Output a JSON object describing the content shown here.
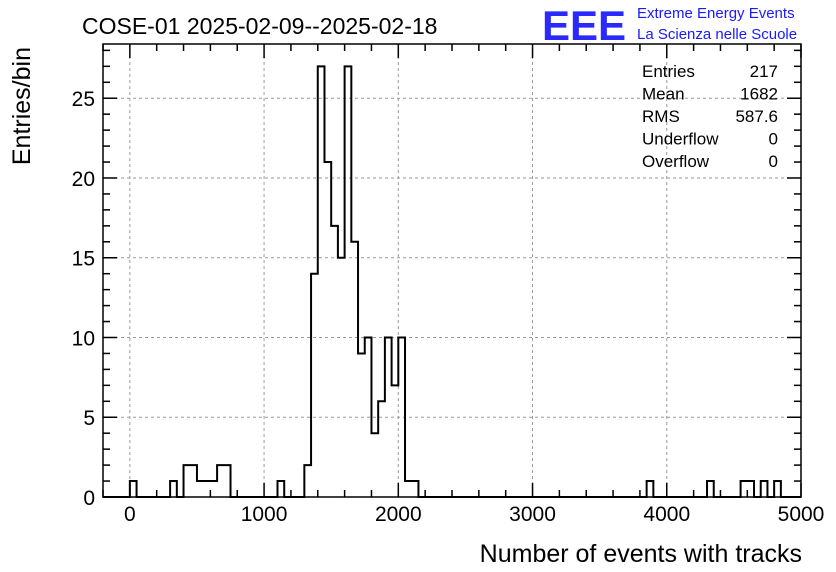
{
  "title": "COSE-01 2025-02-09--2025-02-18",
  "logo": {
    "letters": "EEE",
    "line1": "Extreme Energy Events",
    "line2": "La Scienza nelle Scuole",
    "color": "#1a1aff"
  },
  "stats": [
    {
      "label": "Entries",
      "value": "217"
    },
    {
      "label": "Mean",
      "value": "1682"
    },
    {
      "label": "RMS",
      "value": "587.6"
    },
    {
      "label": "Underflow",
      "value": "0"
    },
    {
      "label": "Overflow",
      "value": "0"
    }
  ],
  "chart_data": {
    "type": "histogram",
    "title": "COSE-01 2025-02-09--2025-02-18",
    "xlabel": "Number of events with tracks",
    "ylabel": "Entries/bin",
    "xlim": [
      -200,
      5000
    ],
    "ylim": [
      0,
      28.4
    ],
    "xticks": [
      0,
      1000,
      2000,
      3000,
      4000,
      5000
    ],
    "yticks": [
      0,
      5,
      10,
      15,
      20,
      25
    ],
    "bin_width": 50,
    "grid": true,
    "legend": "top-right stats box",
    "bins": [
      {
        "x": 0,
        "count": 1
      },
      {
        "x": 300,
        "count": 1
      },
      {
        "x": 400,
        "count": 2
      },
      {
        "x": 450,
        "count": 2
      },
      {
        "x": 500,
        "count": 1
      },
      {
        "x": 550,
        "count": 1
      },
      {
        "x": 600,
        "count": 1
      },
      {
        "x": 650,
        "count": 2
      },
      {
        "x": 700,
        "count": 2
      },
      {
        "x": 1100,
        "count": 1
      },
      {
        "x": 1300,
        "count": 2
      },
      {
        "x": 1350,
        "count": 14
      },
      {
        "x": 1400,
        "count": 27
      },
      {
        "x": 1450,
        "count": 21
      },
      {
        "x": 1500,
        "count": 17
      },
      {
        "x": 1550,
        "count": 15
      },
      {
        "x": 1600,
        "count": 27
      },
      {
        "x": 1650,
        "count": 16
      },
      {
        "x": 1700,
        "count": 9
      },
      {
        "x": 1750,
        "count": 10
      },
      {
        "x": 1800,
        "count": 4
      },
      {
        "x": 1850,
        "count": 6
      },
      {
        "x": 1900,
        "count": 10
      },
      {
        "x": 1950,
        "count": 7
      },
      {
        "x": 2000,
        "count": 10
      },
      {
        "x": 2050,
        "count": 1
      },
      {
        "x": 2100,
        "count": 1
      },
      {
        "x": 3850,
        "count": 1
      },
      {
        "x": 4300,
        "count": 1
      },
      {
        "x": 4550,
        "count": 1
      },
      {
        "x": 4600,
        "count": 1
      },
      {
        "x": 4700,
        "count": 1
      },
      {
        "x": 4800,
        "count": 1
      }
    ]
  }
}
